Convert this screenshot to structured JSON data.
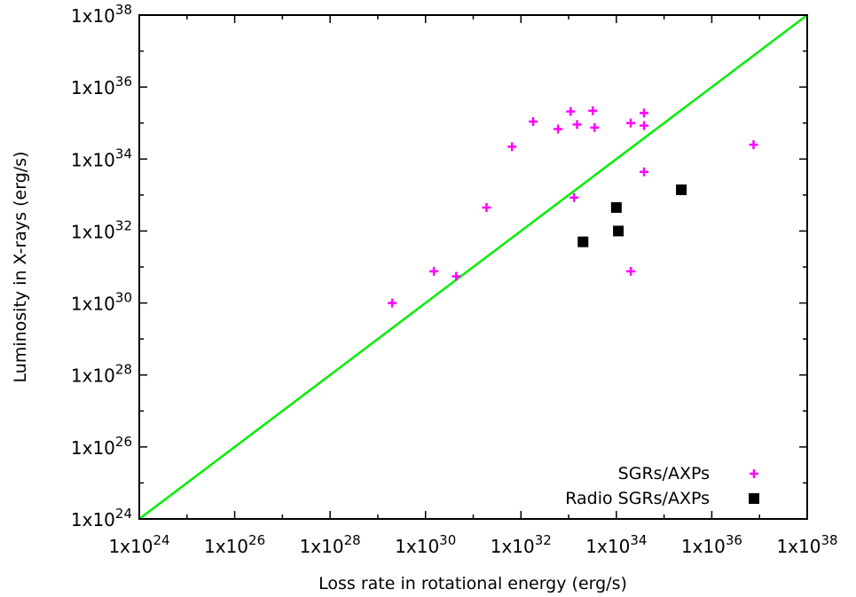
{
  "chart_data": {
    "type": "scatter",
    "title": "",
    "xlabel": "Loss rate in rotational energy (erg/s)",
    "ylabel": "Luminosity in X-rays (erg/s)",
    "x_scale": "log",
    "y_scale": "log",
    "xlim": [
      1e+24,
      1e+38
    ],
    "ylim": [
      1e+24,
      1e+38
    ],
    "x_ticks": [
      {
        "base": "1x10",
        "exp": "24"
      },
      {
        "base": "1x10",
        "exp": "26"
      },
      {
        "base": "1x10",
        "exp": "28"
      },
      {
        "base": "1x10",
        "exp": "30"
      },
      {
        "base": "1x10",
        "exp": "32"
      },
      {
        "base": "1x10",
        "exp": "34"
      },
      {
        "base": "1x10",
        "exp": "36"
      },
      {
        "base": "1x10",
        "exp": "38"
      }
    ],
    "y_ticks": [
      {
        "base": "1x10",
        "exp": "24"
      },
      {
        "base": "1x10",
        "exp": "26"
      },
      {
        "base": "1x10",
        "exp": "28"
      },
      {
        "base": "1x10",
        "exp": "30"
      },
      {
        "base": "1x10",
        "exp": "32"
      },
      {
        "base": "1x10",
        "exp": "34"
      },
      {
        "base": "1x10",
        "exp": "36"
      },
      {
        "base": "1x10",
        "exp": "38"
      }
    ],
    "grid": false,
    "legend_position": "bottom-right",
    "series": [
      {
        "name": "SGRs/AXPs",
        "marker": "plus",
        "color": "#ff00ff",
        "points": [
          {
            "x": 2e+29,
            "y": 1e+30
          },
          {
            "x": 1.5e+30,
            "y": 7.6e+30
          },
          {
            "x": 4.4e+30,
            "y": 5.5e+30
          },
          {
            "x": 1.9e+31,
            "y": 4.5e+32
          },
          {
            "x": 6.5e+31,
            "y": 2.2e+34
          },
          {
            "x": 1.8e+32,
            "y": 1.1e+35
          },
          {
            "x": 6e+32,
            "y": 6.8e+34
          },
          {
            "x": 1.1e+33,
            "y": 2.1e+35
          },
          {
            "x": 1.5e+33,
            "y": 9.1e+34
          },
          {
            "x": 3.2e+33,
            "y": 2.2e+35
          },
          {
            "x": 3.5e+33,
            "y": 7.5e+34
          },
          {
            "x": 1.3e+33,
            "y": 8.5e+32
          },
          {
            "x": 2e+34,
            "y": 1e+35
          },
          {
            "x": 3.8e+34,
            "y": 1.9e+35
          },
          {
            "x": 3.8e+34,
            "y": 8.5e+34
          },
          {
            "x": 3.8e+34,
            "y": 4.4e+33
          },
          {
            "x": 2e+34,
            "y": 7.6e+30
          },
          {
            "x": 7.5e+36,
            "y": 2.5e+34
          }
        ]
      },
      {
        "name": "Radio SGRs/AXPs",
        "marker": "square",
        "color": "#000000",
        "points": [
          {
            "x": 2e+33,
            "y": 5e+31
          },
          {
            "x": 1e+34,
            "y": 4.5e+32
          },
          {
            "x": 1.1e+34,
            "y": 1e+32
          },
          {
            "x": 2.3e+35,
            "y": 1.4e+33
          }
        ]
      }
    ],
    "reference_line": {
      "name": "",
      "color": "#00ee00",
      "from": {
        "x": 1e+24,
        "y": 1e+24
      },
      "to": {
        "x": 1e+38,
        "y": 1e+38
      }
    }
  }
}
